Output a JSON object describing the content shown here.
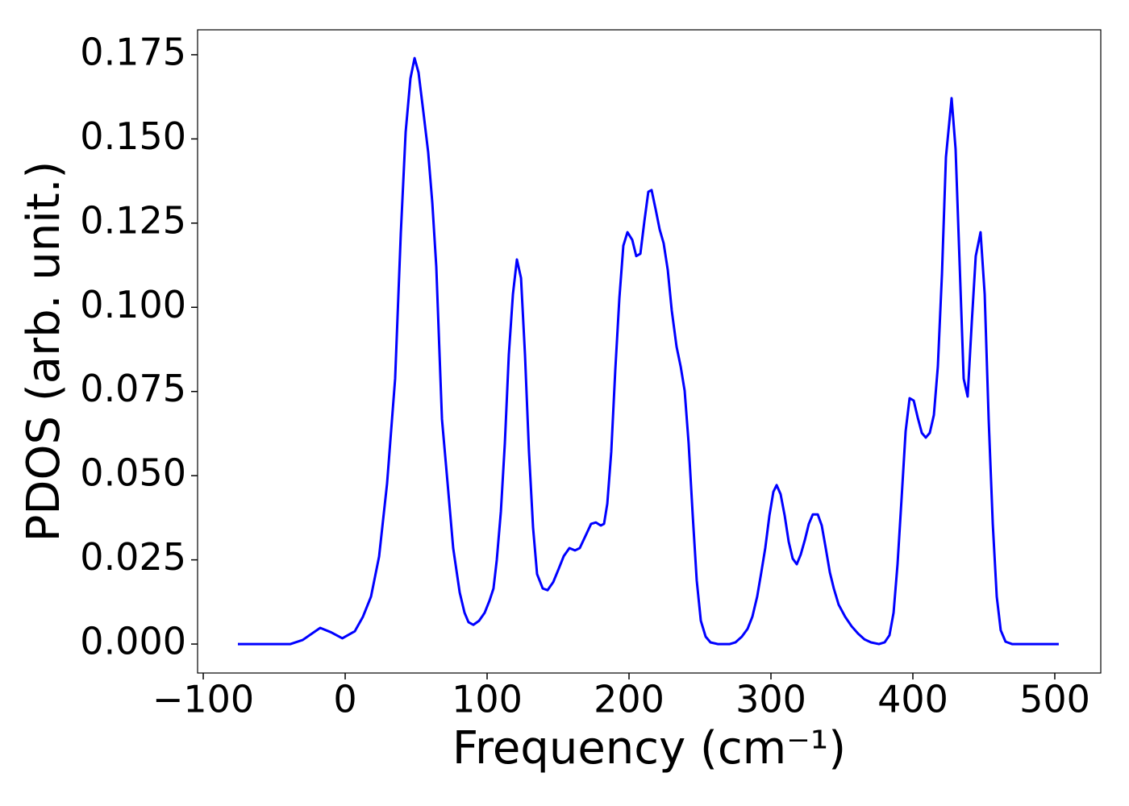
{
  "chart_data": {
    "type": "line",
    "xlabel": "Frequency (cm⁻¹)",
    "ylabel": "PDOS (arb. unit.)",
    "xlim": [
      -104,
      532.4
    ],
    "ylim": [
      -0.0086,
      0.1824
    ],
    "xticks": [
      {
        "value": -100,
        "label": "−100"
      },
      0,
      100,
      200,
      300,
      400,
      500
    ],
    "yticks": [
      {
        "value": 0,
        "label": "0.000"
      },
      {
        "value": 0.025,
        "label": "0.025"
      },
      {
        "value": 0.05,
        "label": "0.050"
      },
      {
        "value": 0.075,
        "label": "0.075"
      },
      {
        "value": 0.1,
        "label": "0.100"
      },
      {
        "value": 0.125,
        "label": "0.125"
      },
      {
        "value": 0.15,
        "label": "0.150"
      },
      {
        "value": 0.175,
        "label": "0.175"
      }
    ],
    "grid": false,
    "series": [
      {
        "color": "#0000ff",
        "x": [
          -75.6,
          -38.6,
          -30,
          -17.6,
          -10,
          -2,
          6.8,
          12.5,
          18.2,
          23.9,
          29.5,
          35.2,
          39.2,
          42.6,
          46,
          48.9,
          51.7,
          55.1,
          58.5,
          61.4,
          64.2,
          68.2,
          72.2,
          76.1,
          80.7,
          84.1,
          86.9,
          90.3,
          94.3,
          98.3,
          101.7,
          104.5,
          106.8,
          109.7,
          112.5,
          115.3,
          118.2,
          121,
          123.9,
          126.7,
          129.5,
          132.4,
          135.2,
          139.2,
          142.6,
          146.6,
          150.6,
          154,
          158,
          161.9,
          165.3,
          169.3,
          173.3,
          176.7,
          180.1,
          182.4,
          184.7,
          187.5,
          190.3,
          193.2,
          196,
          198.9,
          202.3,
          205.1,
          208,
          210.8,
          213.6,
          215.9,
          218.8,
          221.6,
          224.4,
          227.3,
          230.1,
          233.5,
          236.4,
          239.2,
          242,
          244.9,
          247.7,
          250.6,
          254,
          257.4,
          262.5,
          271,
          275,
          279.5,
          283.5,
          286.9,
          290.3,
          293.2,
          296,
          298.9,
          301.7,
          304,
          306.8,
          309.7,
          312.5,
          315.3,
          318.2,
          321,
          323.9,
          326.7,
          329.5,
          333,
          335.8,
          338.6,
          341.5,
          344.3,
          347.7,
          352.3,
          356.8,
          361.4,
          365.9,
          370.5,
          376.1,
          380.1,
          383.5,
          386.4,
          389.2,
          392,
          394.9,
          397.7,
          400.6,
          403.4,
          406.3,
          409.1,
          411.9,
          414.8,
          417.6,
          420.5,
          423.3,
          427.3,
          430.1,
          433,
          435.8,
          438.6,
          441.5,
          444.3,
          447.7,
          450.6,
          453.4,
          456.3,
          459.1,
          461.9,
          465.3,
          469.9,
          502.8
        ],
        "values": [
          0,
          0,
          0.0012,
          0.0048,
          0.0035,
          0.0017,
          0.0038,
          0.0081,
          0.0141,
          0.026,
          0.0476,
          0.0788,
          0.122,
          0.152,
          0.168,
          0.174,
          0.1697,
          0.158,
          0.146,
          0.131,
          0.112,
          0.0668,
          0.0476,
          0.0285,
          0.0153,
          0.0093,
          0.0065,
          0.0057,
          0.0069,
          0.0093,
          0.0129,
          0.0165,
          0.0249,
          0.0393,
          0.0596,
          0.0859,
          0.1039,
          0.1142,
          0.1087,
          0.0859,
          0.0572,
          0.0345,
          0.0208,
          0.0165,
          0.016,
          0.0184,
          0.0225,
          0.0261,
          0.0285,
          0.0278,
          0.0285,
          0.0321,
          0.0357,
          0.0361,
          0.0352,
          0.0357,
          0.0417,
          0.0572,
          0.0812,
          0.1027,
          0.1183,
          0.1223,
          0.12,
          0.1152,
          0.1159,
          0.1255,
          0.1343,
          0.1348,
          0.129,
          0.1231,
          0.119,
          0.1111,
          0.0991,
          0.0883,
          0.0824,
          0.0752,
          0.0596,
          0.0381,
          0.0189,
          0.0069,
          0.0022,
          0.0005,
          0,
          0,
          0.0005,
          0.0022,
          0.0045,
          0.0081,
          0.0141,
          0.0213,
          0.0285,
          0.0381,
          0.0452,
          0.0472,
          0.0445,
          0.0381,
          0.0304,
          0.0254,
          0.0237,
          0.0266,
          0.0309,
          0.0357,
          0.0385,
          0.0385,
          0.0352,
          0.0285,
          0.0213,
          0.0165,
          0.0117,
          0.0081,
          0.0053,
          0.0031,
          0.0014,
          0.0005,
          0,
          0.0005,
          0.0026,
          0.0093,
          0.0237,
          0.0429,
          0.0632,
          0.073,
          0.0723,
          0.0673,
          0.0627,
          0.0613,
          0.0627,
          0.068,
          0.0824,
          0.1099,
          0.1446,
          0.1621,
          0.147,
          0.1123,
          0.0788,
          0.0735,
          0.0955,
          0.1152,
          0.1223,
          0.1039,
          0.0668,
          0.0357,
          0.0141,
          0.0041,
          0.0007,
          0,
          0
        ]
      }
    ]
  }
}
